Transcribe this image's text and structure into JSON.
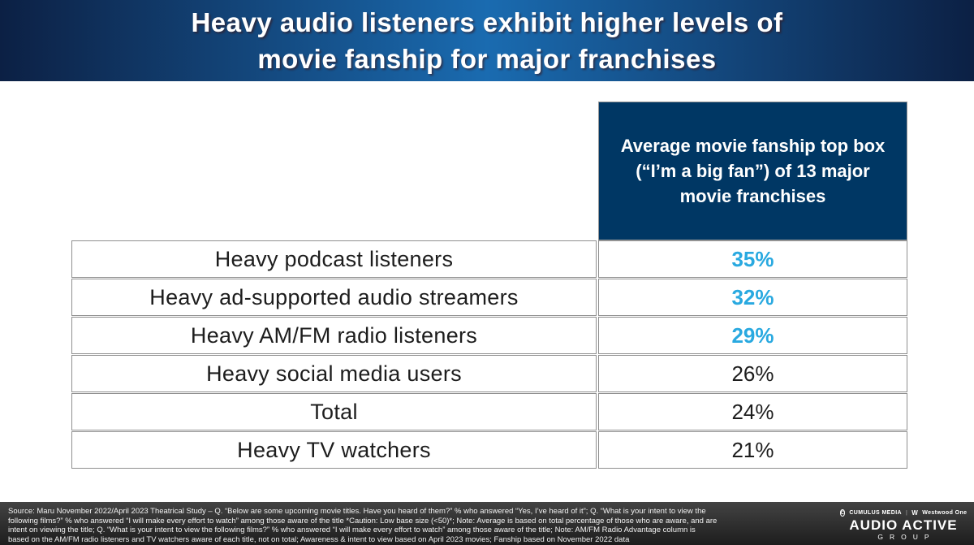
{
  "slide": {
    "title_line1": "Heavy audio listeners exhibit higher levels of",
    "title_line2": "movie fanship for major franchises"
  },
  "table": {
    "value_column_header": "Average movie fanship top box (“I’m a big fan”) of 13 major movie franchises",
    "rows": [
      {
        "label": "Heavy podcast listeners",
        "value": "35%",
        "highlight": true
      },
      {
        "label": "Heavy ad-supported audio streamers",
        "value": "32%",
        "highlight": true
      },
      {
        "label": "Heavy AM/FM radio listeners",
        "value": "29%",
        "highlight": true
      },
      {
        "label": "Heavy social media users",
        "value": "26%",
        "highlight": false
      },
      {
        "label": "Total",
        "value": "24%",
        "highlight": false
      },
      {
        "label": "Heavy TV watchers",
        "value": "21%",
        "highlight": false
      }
    ]
  },
  "chart_data": {
    "type": "table",
    "title": "Average movie fanship top box (“I’m a big fan”) of 13 major movie franchises",
    "categories": [
      "Heavy podcast listeners",
      "Heavy ad-supported audio streamers",
      "Heavy AM/FM radio listeners",
      "Heavy social media users",
      "Total",
      "Heavy TV watchers"
    ],
    "values": [
      35,
      32,
      29,
      26,
      24,
      21
    ],
    "value_unit": "%",
    "highlighted_categories": [
      "Heavy podcast listeners",
      "Heavy ad-supported audio streamers",
      "Heavy AM/FM radio listeners"
    ]
  },
  "footer": {
    "source_text": "Source: Maru November 2022/April 2023 Theatrical Study – Q. “Below are some upcoming movie titles. Have you heard of them?”  % who answered “Yes, I’ve heard of it”; Q. “What is your intent to view the\nfollowing films?” % who answered “I will make every effort to watch” among those aware of the title *Caution: Low base size (<50)*; Note: Average is based on total percentage of those who are aware, and are\nintent on viewing the title; Q. “What is your intent to view the following films?” % who answered “I will make every effort to watch” among those aware of the title; Note: AM/FM Radio Advantage column is\nbased on the AM/FM radio listeners and TV watchers aware of each title, not on total; Awareness & intent to view based on April 2023 movies; Fanship based on November 2022 data",
    "logo": {
      "cumulus_initial": "C",
      "cumulus_label": "CUMULUS MEDIA",
      "divider": "|",
      "westwood_mark": "W",
      "westwood_label": "Westwood One",
      "line1": "AUDIO ACTIVE",
      "line2": "GROUP"
    }
  },
  "colors": {
    "banner_gradient_dark": "#0c2044",
    "banner_gradient_light": "#1a6bb0",
    "table_header_navy": "#003764",
    "accent_blue": "#29a9e0",
    "border_gray": "#8f8f8f",
    "footer_background_top": "#434343",
    "footer_background_bottom": "#1d1d1d"
  }
}
